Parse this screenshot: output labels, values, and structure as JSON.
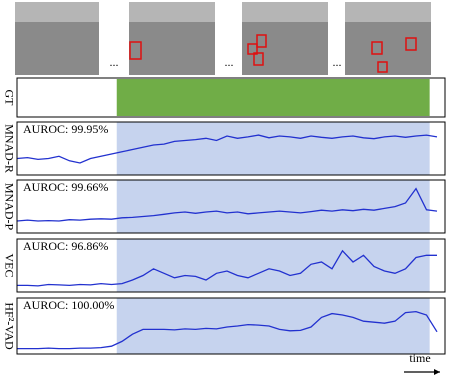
{
  "frame_separator": "...",
  "time_label": "time",
  "chart_data": [
    {
      "type": "gt",
      "ylabel": "GT",
      "xlim": [
        0,
        40
      ],
      "anomaly_span": [
        9.5,
        39.3
      ],
      "color": "#70ad47"
    },
    {
      "type": "line",
      "ylabel": "MNAD-R",
      "annotation": "AUROC: 99.95%",
      "xlim": [
        0,
        40
      ],
      "ylim": [
        0,
        1
      ],
      "anomaly_span": [
        9.5,
        39.3
      ],
      "shade_color": "#c6d3ee",
      "x": [
        0,
        1,
        2,
        3,
        4,
        5,
        6,
        7,
        8,
        9,
        10,
        11,
        12,
        13,
        14,
        15,
        16,
        17,
        18,
        19,
        20,
        21,
        22,
        23,
        24,
        25,
        26,
        27,
        28,
        29,
        30,
        31,
        32,
        33,
        34,
        35,
        36,
        37,
        38,
        39,
        40
      ],
      "series": [
        {
          "color": "#2231cf",
          "values": [
            0.3,
            0.32,
            0.28,
            0.3,
            0.35,
            0.25,
            0.2,
            0.3,
            0.35,
            0.4,
            0.45,
            0.5,
            0.55,
            0.6,
            0.62,
            0.68,
            0.7,
            0.72,
            0.75,
            0.7,
            0.8,
            0.75,
            0.78,
            0.82,
            0.76,
            0.8,
            0.78,
            0.75,
            0.8,
            0.77,
            0.75,
            0.78,
            0.8,
            0.76,
            0.74,
            0.78,
            0.8,
            0.77,
            0.8,
            0.82,
            0.78
          ]
        }
      ]
    },
    {
      "type": "line",
      "ylabel": "MNAD-P",
      "annotation": "AUROC: 99.66%",
      "xlim": [
        0,
        40
      ],
      "ylim": [
        0,
        1
      ],
      "anomaly_span": [
        9.5,
        39.3
      ],
      "shade_color": "#c6d3ee",
      "x": [
        0,
        1,
        2,
        3,
        4,
        5,
        6,
        7,
        8,
        9,
        10,
        11,
        12,
        13,
        14,
        15,
        16,
        17,
        18,
        19,
        20,
        21,
        22,
        23,
        24,
        25,
        26,
        27,
        28,
        29,
        30,
        31,
        32,
        33,
        34,
        35,
        36,
        37,
        38,
        39,
        40
      ],
      "series": [
        {
          "color": "#2231cf",
          "values": [
            0.2,
            0.22,
            0.2,
            0.21,
            0.2,
            0.23,
            0.22,
            0.24,
            0.25,
            0.24,
            0.27,
            0.28,
            0.3,
            0.32,
            0.35,
            0.38,
            0.4,
            0.37,
            0.4,
            0.42,
            0.38,
            0.4,
            0.36,
            0.38,
            0.4,
            0.42,
            0.4,
            0.38,
            0.41,
            0.44,
            0.42,
            0.45,
            0.43,
            0.46,
            0.44,
            0.48,
            0.52,
            0.6,
            0.92,
            0.45,
            0.42
          ]
        }
      ]
    },
    {
      "type": "line",
      "ylabel": "VEC",
      "annotation": "AUROC: 96.86%",
      "xlim": [
        0,
        40
      ],
      "ylim": [
        0,
        1
      ],
      "anomaly_span": [
        9.5,
        39.3
      ],
      "shade_color": "#c6d3ee",
      "x": [
        0,
        1,
        2,
        3,
        4,
        5,
        6,
        7,
        8,
        9,
        10,
        11,
        12,
        13,
        14,
        15,
        16,
        17,
        18,
        19,
        20,
        21,
        22,
        23,
        24,
        25,
        26,
        27,
        28,
        29,
        30,
        31,
        32,
        33,
        34,
        35,
        36,
        37,
        38,
        39,
        40
      ],
      "series": [
        {
          "color": "#2231cf",
          "values": [
            0.08,
            0.08,
            0.07,
            0.1,
            0.09,
            0.08,
            0.1,
            0.09,
            0.12,
            0.1,
            0.12,
            0.2,
            0.3,
            0.45,
            0.35,
            0.25,
            0.3,
            0.28,
            0.2,
            0.35,
            0.4,
            0.3,
            0.25,
            0.35,
            0.45,
            0.4,
            0.3,
            0.35,
            0.55,
            0.6,
            0.45,
            0.85,
            0.6,
            0.75,
            0.5,
            0.4,
            0.35,
            0.45,
            0.7,
            0.75,
            0.75
          ]
        }
      ]
    },
    {
      "type": "line",
      "ylabel": "HF²-VAD",
      "annotation": "AUROC: 100.00%",
      "xlim": [
        0,
        40
      ],
      "ylim": [
        0,
        1
      ],
      "anomaly_span": [
        9.5,
        39.3
      ],
      "shade_color": "#c6d3ee",
      "x": [
        0,
        1,
        2,
        3,
        4,
        5,
        6,
        7,
        8,
        9,
        10,
        11,
        12,
        13,
        14,
        15,
        16,
        17,
        18,
        19,
        20,
        21,
        22,
        23,
        24,
        25,
        26,
        27,
        28,
        29,
        30,
        31,
        32,
        33,
        34,
        35,
        36,
        37,
        38,
        39,
        40
      ],
      "series": [
        {
          "color": "#2231cf",
          "values": [
            0.05,
            0.05,
            0.05,
            0.06,
            0.05,
            0.05,
            0.06,
            0.06,
            0.07,
            0.1,
            0.2,
            0.35,
            0.45,
            0.45,
            0.45,
            0.44,
            0.46,
            0.45,
            0.47,
            0.46,
            0.5,
            0.52,
            0.55,
            0.54,
            0.52,
            0.45,
            0.42,
            0.43,
            0.5,
            0.7,
            0.78,
            0.75,
            0.7,
            0.62,
            0.6,
            0.58,
            0.62,
            0.8,
            0.82,
            0.75,
            0.4
          ]
        }
      ]
    }
  ]
}
